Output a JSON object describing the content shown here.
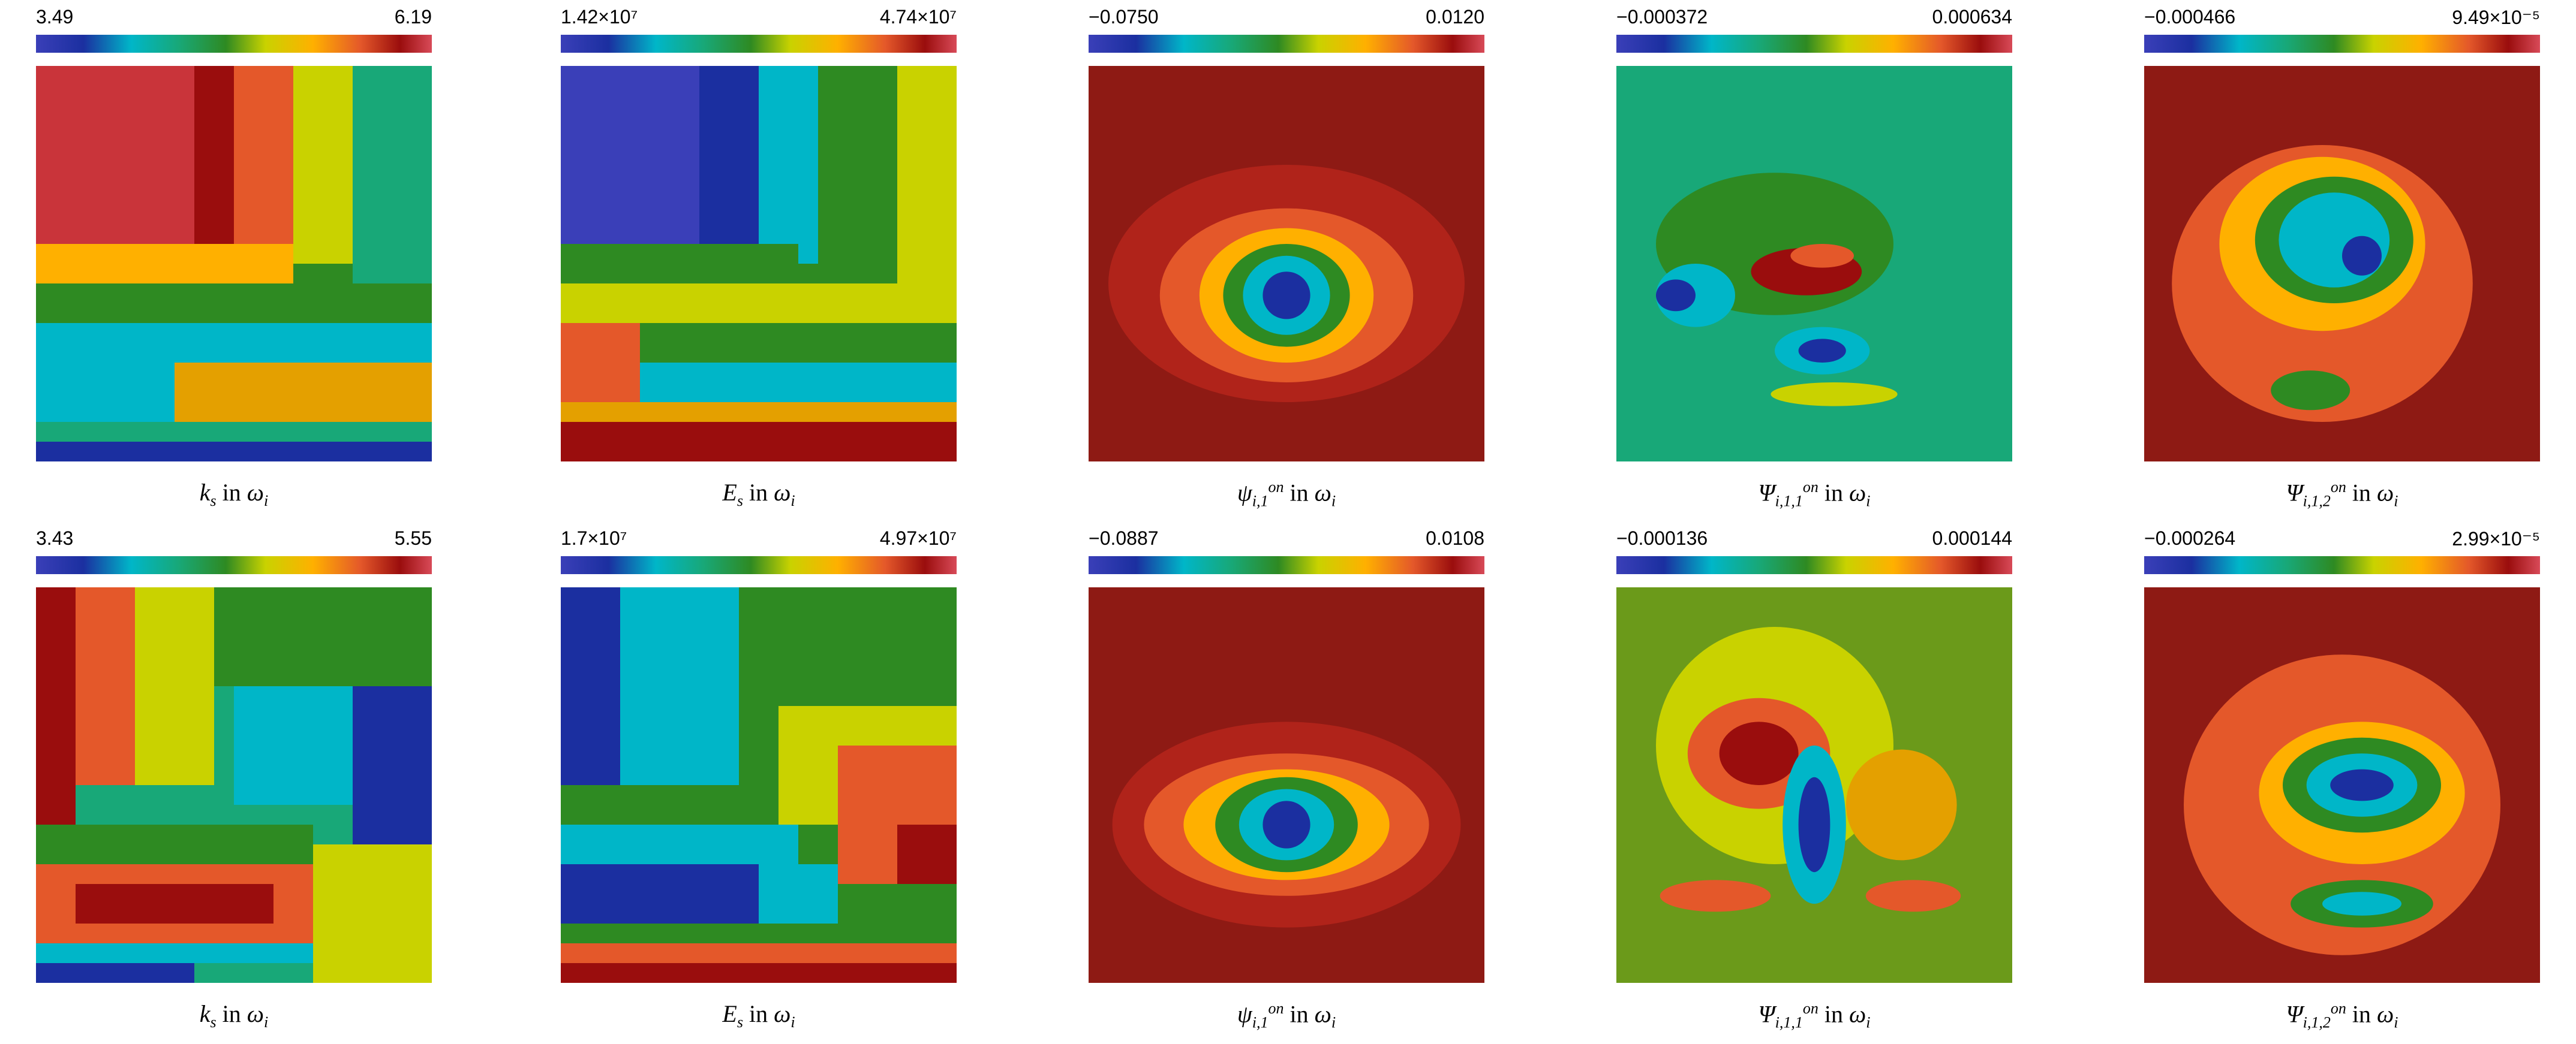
{
  "panels": [
    {
      "row": 1,
      "colorbar": {
        "min": "3.49",
        "max": "6.19"
      },
      "caption": {
        "symbol": "k",
        "sub": "s",
        "sup": "",
        "mid": " in ",
        "domain": "ω",
        "domain_sub": "i"
      },
      "image_kind": "blocky-field",
      "dominant_colors": [
        "#c9343a",
        "#e4582a",
        "#ffb000",
        "#2e8a22",
        "#00b6c8",
        "#1b2fa0"
      ]
    },
    {
      "row": 1,
      "colorbar": {
        "min": "1.42×10⁷",
        "max": "4.74×10⁷"
      },
      "caption": {
        "symbol": "E",
        "sub": "s",
        "sup": "",
        "mid": " in ",
        "domain": "ω",
        "domain_sub": "i"
      },
      "image_kind": "blocky-field",
      "dominant_colors": [
        "#1b2fa0",
        "#00b6c8",
        "#2e8a22",
        "#c9d200",
        "#e4582a",
        "#9a0d0d"
      ]
    },
    {
      "row": 1,
      "colorbar": {
        "min": "−0.0750",
        "max": "0.0120"
      },
      "caption": {
        "symbol": "ψ",
        "sub": "i,1",
        "sup": "on",
        "mid": " in ",
        "domain": "ω",
        "domain_sub": "i"
      },
      "image_kind": "smooth-field",
      "dominant_colors": [
        "#8e1a14",
        "#e4582a",
        "#ffb000",
        "#2e8a22",
        "#00b6c8",
        "#1b2fa0"
      ]
    },
    {
      "row": 1,
      "colorbar": {
        "min": "−0.000372",
        "max": "0.000634"
      },
      "caption": {
        "symbol": "Ψ",
        "sub": "i,1,1",
        "sup": "on",
        "mid": " in ",
        "domain": "ω",
        "domain_sub": "i"
      },
      "image_kind": "smooth-field",
      "dominant_colors": [
        "#18a878",
        "#2e8a22",
        "#00b6c8",
        "#1b2fa0",
        "#9a0d0d"
      ]
    },
    {
      "row": 1,
      "colorbar": {
        "min": "−0.000466",
        "max": "9.49×10⁻⁵"
      },
      "caption": {
        "symbol": "Ψ",
        "sub": "i,1,2",
        "sup": "on",
        "mid": " in ",
        "domain": "ω",
        "domain_sub": "i"
      },
      "image_kind": "smooth-field",
      "dominant_colors": [
        "#8e1a14",
        "#e4582a",
        "#ffb000",
        "#2e8a22",
        "#00b6c8",
        "#1b2fa0"
      ]
    },
    {
      "row": 2,
      "colorbar": {
        "min": "3.43",
        "max": "5.55"
      },
      "caption": {
        "symbol": "k",
        "sub": "s",
        "sup": "",
        "mid": " in ",
        "domain": "ω",
        "domain_sub": "i"
      },
      "image_kind": "blocky-field",
      "dominant_colors": [
        "#c9d200",
        "#e4582a",
        "#9a0d0d",
        "#2e8a22",
        "#00b6c8",
        "#1b2fa0"
      ]
    },
    {
      "row": 2,
      "colorbar": {
        "min": "1.7×10⁷",
        "max": "4.97×10⁷"
      },
      "caption": {
        "symbol": "E",
        "sub": "s",
        "sup": "",
        "mid": " in ",
        "domain": "ω",
        "domain_sub": "i"
      },
      "image_kind": "blocky-field",
      "dominant_colors": [
        "#1b2fa0",
        "#00b6c8",
        "#2e8a22",
        "#c9d200",
        "#e4582a",
        "#9a0d0d"
      ]
    },
    {
      "row": 2,
      "colorbar": {
        "min": "−0.0887",
        "max": "0.0108"
      },
      "caption": {
        "symbol": "ψ",
        "sub": "i,1",
        "sup": "on",
        "mid": " in ",
        "domain": "ω",
        "domain_sub": "i"
      },
      "image_kind": "smooth-field",
      "dominant_colors": [
        "#8e1a14",
        "#e4582a",
        "#ffb000",
        "#2e8a22",
        "#00b6c8",
        "#1b2fa0"
      ]
    },
    {
      "row": 2,
      "colorbar": {
        "min": "−0.000136",
        "max": "0.000144"
      },
      "caption": {
        "symbol": "Ψ",
        "sub": "i,1,1",
        "sup": "on",
        "mid": " in ",
        "domain": "ω",
        "domain_sub": "i"
      },
      "image_kind": "smooth-field",
      "dominant_colors": [
        "#2e8a22",
        "#c9d200",
        "#e4582a",
        "#9a0d0d",
        "#00b6c8",
        "#1b2fa0"
      ]
    },
    {
      "row": 2,
      "colorbar": {
        "min": "−0.000264",
        "max": "2.99×10⁻⁵"
      },
      "caption": {
        "symbol": "Ψ",
        "sub": "i,1,2",
        "sup": "on",
        "mid": " in ",
        "domain": "ω",
        "domain_sub": "i"
      },
      "image_kind": "smooth-field",
      "dominant_colors": [
        "#8e1a14",
        "#e4582a",
        "#ffb000",
        "#2e8a22",
        "#00b6c8",
        "#1b2fa0"
      ]
    }
  ]
}
